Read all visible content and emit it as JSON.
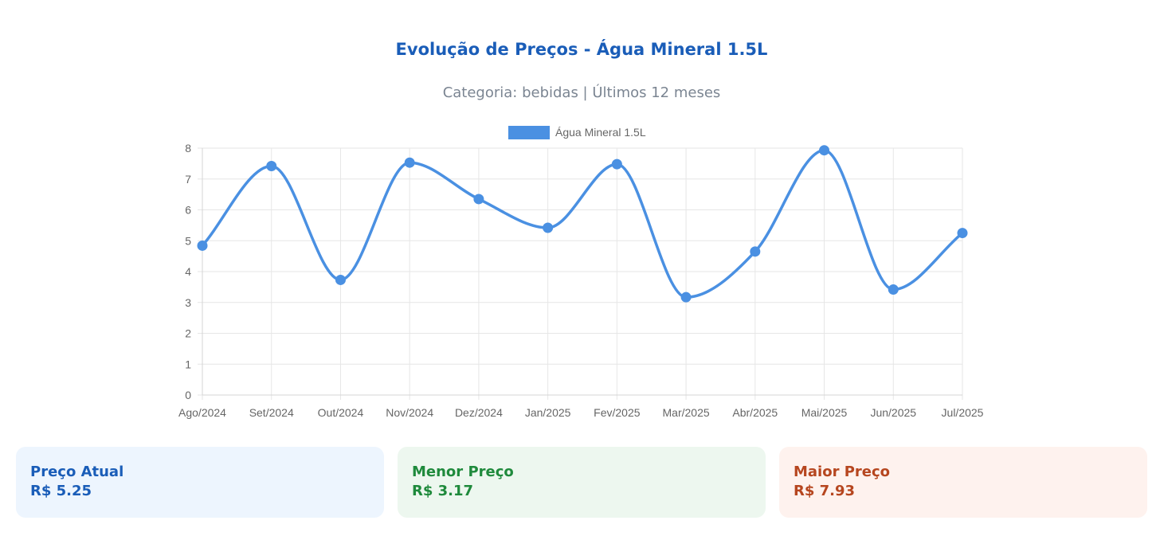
{
  "header": {
    "title": "Evolução de Preços - Água Mineral 1.5L",
    "subtitle": "Categoria: bebidas | Últimos 12 meses"
  },
  "chart_data": {
    "type": "line",
    "categories": [
      "Ago/2024",
      "Set/2024",
      "Out/2024",
      "Nov/2024",
      "Dez/2024",
      "Jan/2025",
      "Fev/2025",
      "Mar/2025",
      "Abr/2025",
      "Mai/2025",
      "Jun/2025",
      "Jul/2025"
    ],
    "series": [
      {
        "name": "Água Mineral 1.5L",
        "values": [
          4.84,
          7.42,
          3.73,
          7.53,
          6.35,
          5.42,
          7.48,
          3.17,
          4.65,
          7.93,
          3.42,
          5.25
        ],
        "color": "#4a90e2"
      }
    ],
    "yticks": [
      0,
      1,
      2,
      3,
      4,
      5,
      6,
      7,
      8
    ],
    "ylim": [
      0,
      8
    ],
    "grid": true,
    "legend": "top",
    "curve": "smooth"
  },
  "cards": {
    "current": {
      "label": "Preço Atual",
      "value": "R$ 5.25"
    },
    "min": {
      "label": "Menor Preço",
      "value": "R$ 3.17"
    },
    "max": {
      "label": "Maior Preço",
      "value": "R$ 7.93"
    }
  },
  "colors": {
    "title": "#1a5db8",
    "line": "#4a90e2",
    "grid": "#e6e6e6",
    "current_bg": "#edf5fe",
    "min_bg": "#edf7ef",
    "min_text": "#1f8a3c",
    "max_bg": "#fef2ee",
    "max_text": "#b6461f"
  }
}
